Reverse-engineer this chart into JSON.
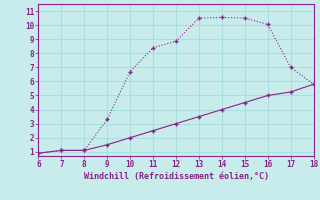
{
  "xlabel": "Windchill (Refroidissement éolien,°C)",
  "xlim": [
    6,
    18
  ],
  "ylim": [
    0.7,
    11.5
  ],
  "xticks": [
    6,
    7,
    8,
    9,
    10,
    11,
    12,
    13,
    14,
    15,
    16,
    17,
    18
  ],
  "yticks": [
    1,
    2,
    3,
    4,
    5,
    6,
    7,
    8,
    9,
    10,
    11
  ],
  "bg_color": "#c8ecec",
  "line_color": "#882288",
  "grid_color": "#aadddd",
  "line1_x": [
    6,
    7,
    8,
    9,
    10,
    11,
    12,
    13,
    14,
    15,
    16,
    17,
    18
  ],
  "line1_y": [
    0.9,
    1.1,
    1.1,
    3.3,
    6.7,
    8.4,
    8.85,
    10.5,
    10.55,
    10.5,
    10.05,
    7.0,
    5.8
  ],
  "line2_x": [
    6,
    7,
    8,
    9,
    10,
    11,
    12,
    13,
    14,
    15,
    16,
    17,
    18
  ],
  "line2_y": [
    0.9,
    1.1,
    1.1,
    1.5,
    2.0,
    2.5,
    3.0,
    3.5,
    4.0,
    4.5,
    5.0,
    5.25,
    5.8
  ],
  "marker": "+"
}
